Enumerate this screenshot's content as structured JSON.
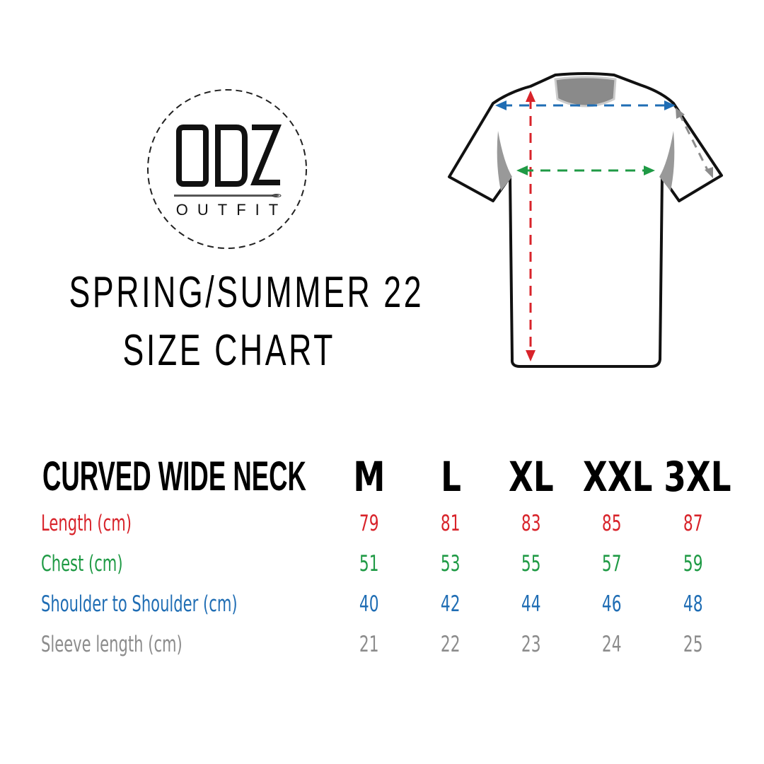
{
  "logo": {
    "brand": "ODZ",
    "sub": "OUTFIT"
  },
  "title": {
    "line1": "SPRING/SUMMER 22",
    "line2": "SIZE CHART"
  },
  "colors": {
    "length": "#d8232a",
    "chest": "#1f9a45",
    "shoulder": "#1f6db4",
    "sleeve": "#8c8c8c"
  },
  "table": {
    "header": "CURVED WIDE NECK",
    "sizes": [
      "M",
      "L",
      "XL",
      "XXL",
      "3XL"
    ],
    "rows": [
      {
        "label": "Length (cm)",
        "values": [
          "79",
          "81",
          "83",
          "85",
          "87"
        ]
      },
      {
        "label": "Chest (cm)",
        "values": [
          "51",
          "53",
          "55",
          "57",
          "59"
        ]
      },
      {
        "label": "Shoulder to Shoulder (cm)",
        "values": [
          "40",
          "42",
          "44",
          "46",
          "48"
        ]
      },
      {
        "label": "Sleeve length (cm)",
        "values": [
          "21",
          "22",
          "23",
          "24",
          "25"
        ]
      }
    ]
  }
}
